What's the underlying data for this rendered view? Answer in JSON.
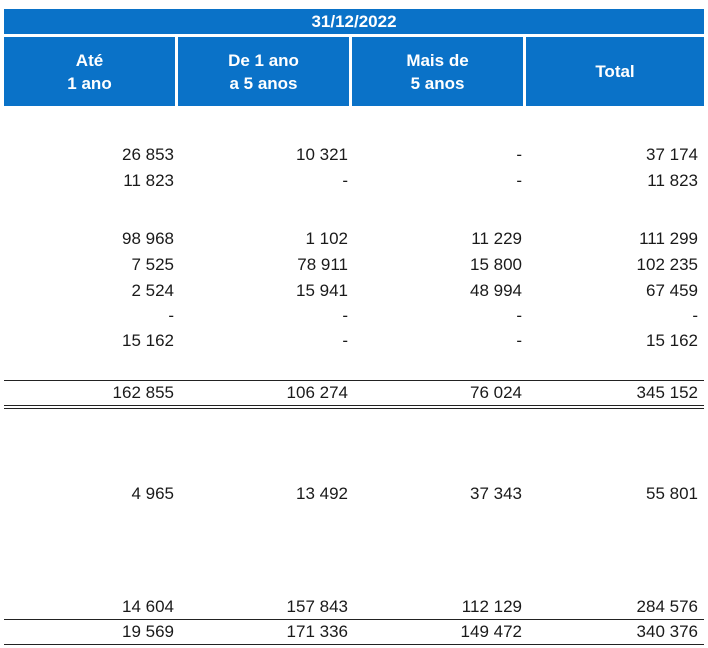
{
  "header": {
    "date": "31/12/2022",
    "columns": [
      {
        "line1": "Até",
        "line2": "1 ano"
      },
      {
        "line1": "De 1 ano",
        "line2": "a 5 anos"
      },
      {
        "line1": "Mais de",
        "line2": "5 anos"
      },
      {
        "line1": "Total",
        "line2": ""
      }
    ]
  },
  "rows": [
    [
      "26 853",
      "10 321",
      "-",
      "37 174"
    ],
    [
      "11 823",
      "-",
      "-",
      "11 823"
    ],
    [
      "98 968",
      "1 102",
      "11 229",
      "111 299"
    ],
    [
      "7 525",
      "78 911",
      "15 800",
      "102 235"
    ],
    [
      "2 524",
      "15 941",
      "48 994",
      "67 459"
    ],
    [
      "-",
      "-",
      "-",
      "-"
    ],
    [
      "15 162",
      "-",
      "-",
      "15 162"
    ]
  ],
  "subtotal": [
    "162 855",
    "106 274",
    "76 024",
    "345 152"
  ],
  "rows_b": [
    [
      "4 965",
      "13 492",
      "37 343",
      "55 801"
    ],
    [
      "14 604",
      "157 843",
      "112 129",
      "284 576"
    ]
  ],
  "total": [
    "19 569",
    "171 336",
    "149 472",
    "340 376"
  ],
  "colors": {
    "header_bg": "#0A72C8",
    "header_text": "#FFFFFF"
  }
}
